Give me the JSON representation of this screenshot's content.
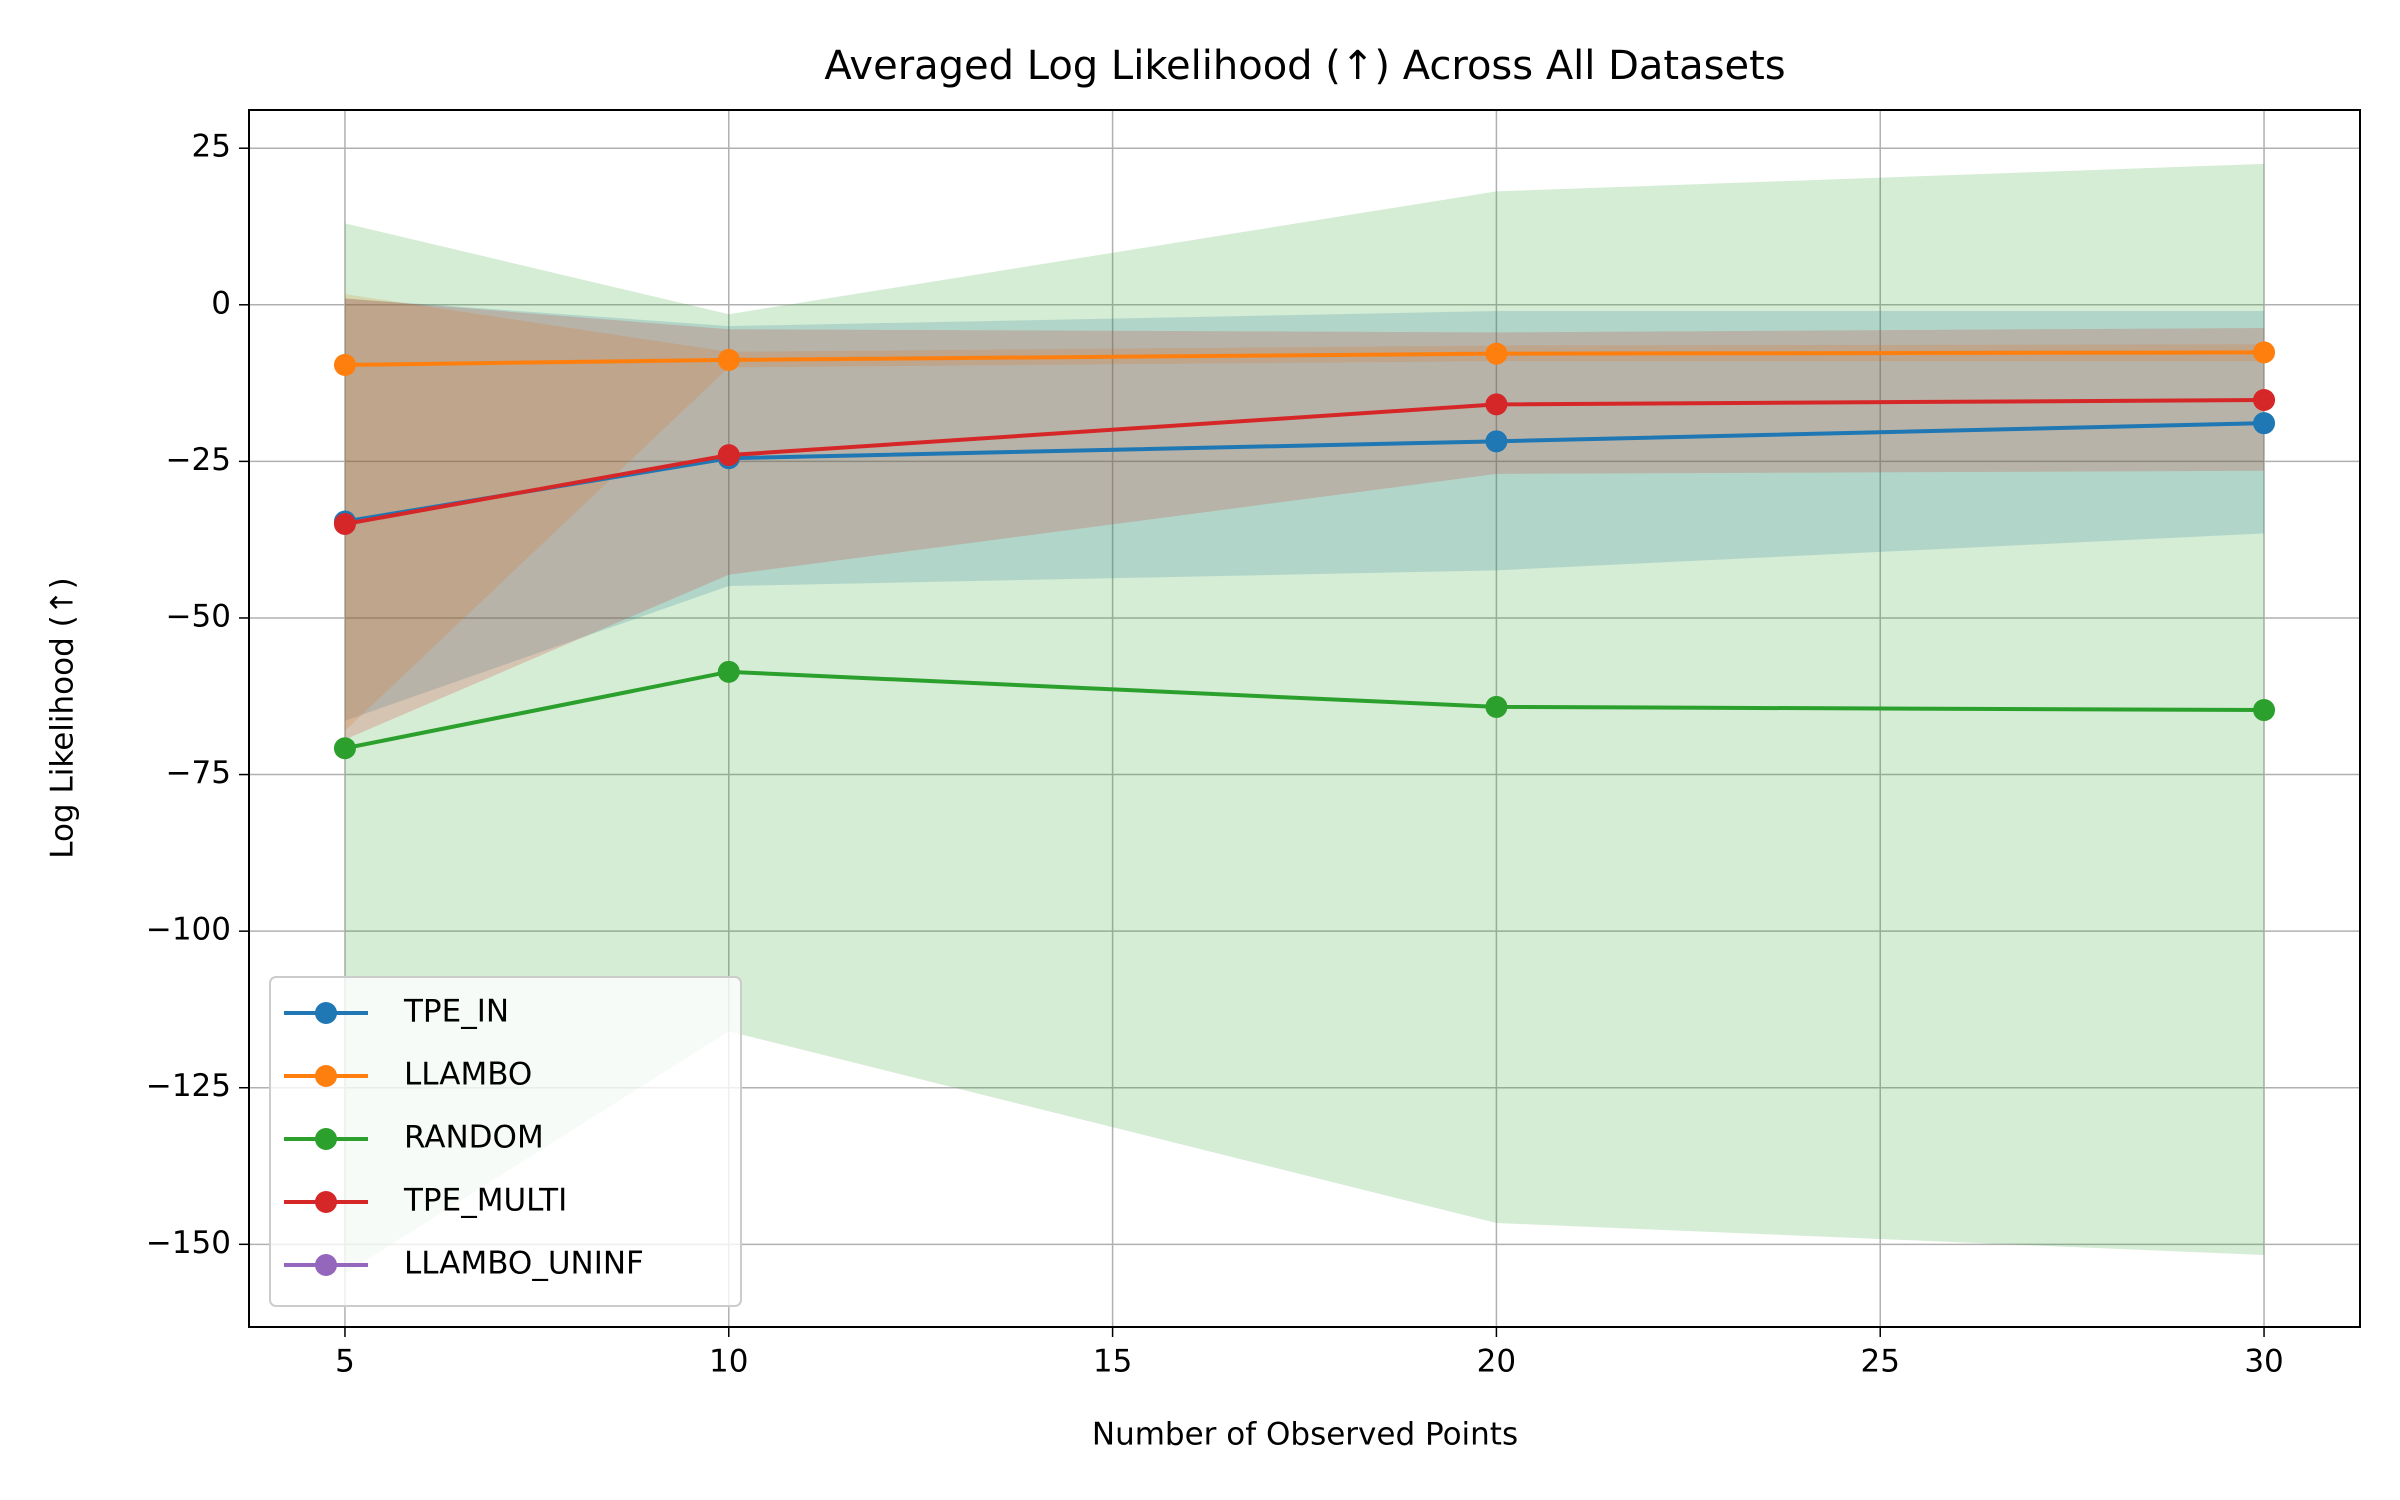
{
  "chart_data": {
    "type": "line",
    "title": "Averaged Log Likelihood (↑) Across All Datasets",
    "xlabel": "Number of Observed Points",
    "ylabel": "Log Likelihood (↑)",
    "x": [
      5,
      10,
      20,
      30
    ],
    "xlim": [
      3.75,
      31.25
    ],
    "ylim": [
      -163.2,
      31.1
    ],
    "xticks": [
      5,
      10,
      15,
      20,
      25,
      30
    ],
    "yticks": [
      {
        "value": -150,
        "label": "−150"
      },
      {
        "value": -125,
        "label": "−125"
      },
      {
        "value": -100,
        "label": "−100"
      },
      {
        "value": -75,
        "label": "−75"
      },
      {
        "value": -50,
        "label": "−50"
      },
      {
        "value": -25,
        "label": "−25"
      },
      0,
      25
    ],
    "grid": true,
    "legend": "lower left",
    "series": [
      {
        "name": "TPE_IN",
        "color": "#1f77b4",
        "values": [
          -34.6,
          -24.5,
          -21.8,
          -18.9
        ],
        "lower": [
          -66.4,
          -44.9,
          -42.4,
          -36.5
        ],
        "upper": [
          1.0,
          -3.4,
          -1.0,
          -1.0
        ]
      },
      {
        "name": "LLAMBO",
        "color": "#ff7f0e",
        "values": [
          -9.6,
          -8.8,
          -7.8,
          -7.6
        ],
        "lower": [
          -68.0,
          -10.0,
          -9.0,
          -9.0
        ],
        "upper": [
          1.7,
          -7.5,
          -6.5,
          -6.3
        ]
      },
      {
        "name": "RANDOM",
        "color": "#2ca02c",
        "values": [
          -70.8,
          -58.6,
          -64.2,
          -64.7
        ],
        "lower": [
          -154.7,
          -116.0,
          -146.6,
          -151.7
        ],
        "upper": [
          13.0,
          -1.5,
          18.1,
          22.5
        ]
      },
      {
        "name": "TPE_MULTI",
        "color": "#d62728",
        "values": [
          -35.0,
          -24.0,
          -15.9,
          -15.2
        ],
        "lower": [
          -69.4,
          -43.1,
          -27.0,
          -26.5
        ],
        "upper": [
          1.0,
          -3.9,
          -4.4,
          -3.7
        ]
      },
      {
        "name": "LLAMBO_UNINF",
        "color": "#9467bd",
        "values": [
          null,
          null,
          null,
          null
        ],
        "lower": [
          null,
          null,
          null,
          null
        ],
        "upper": [
          null,
          null,
          null,
          null
        ]
      }
    ]
  }
}
